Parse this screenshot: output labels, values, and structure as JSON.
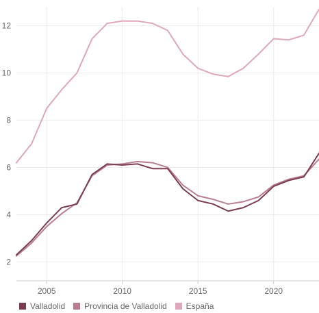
{
  "chart_data": {
    "type": "line",
    "title": "",
    "xlabel": "",
    "ylabel": "",
    "x": [
      2003,
      2004,
      2005,
      2006,
      2007,
      2008,
      2009,
      2010,
      2011,
      2012,
      2013,
      2014,
      2015,
      2016,
      2017,
      2018,
      2019,
      2020,
      2021,
      2022,
      2023
    ],
    "xlim": [
      2003,
      2023
    ],
    "ylim": [
      1.2,
      12.8
    ],
    "x_ticks": [
      2005,
      2010,
      2015,
      2020
    ],
    "y_ticks": [
      2,
      4,
      6,
      8,
      10,
      12
    ],
    "grid": true,
    "legend_position": "bottom-left",
    "series": [
      {
        "name": "Valladolid",
        "color": "#7a3c52",
        "values": [
          2.3,
          2.9,
          3.65,
          4.3,
          4.45,
          5.7,
          6.15,
          6.1,
          6.15,
          5.95,
          5.95,
          5.1,
          4.6,
          4.45,
          4.15,
          4.3,
          4.6,
          5.2,
          5.45,
          5.6,
          6.6
        ]
      },
      {
        "name": "Provincia de Valladolid",
        "color": "#b87e8f",
        "values": [
          2.25,
          2.8,
          3.5,
          4.05,
          4.5,
          5.65,
          6.1,
          6.15,
          6.25,
          6.2,
          6.0,
          5.25,
          4.8,
          4.65,
          4.45,
          4.55,
          4.75,
          5.25,
          5.5,
          5.65,
          6.35
        ]
      },
      {
        "name": "España",
        "color": "#dfa7b7",
        "values": [
          6.2,
          7.0,
          8.5,
          9.3,
          10.0,
          11.45,
          12.1,
          12.2,
          12.2,
          12.1,
          11.8,
          10.8,
          10.2,
          9.95,
          9.85,
          10.2,
          10.8,
          11.45,
          11.4,
          11.6,
          12.7
        ]
      }
    ]
  }
}
